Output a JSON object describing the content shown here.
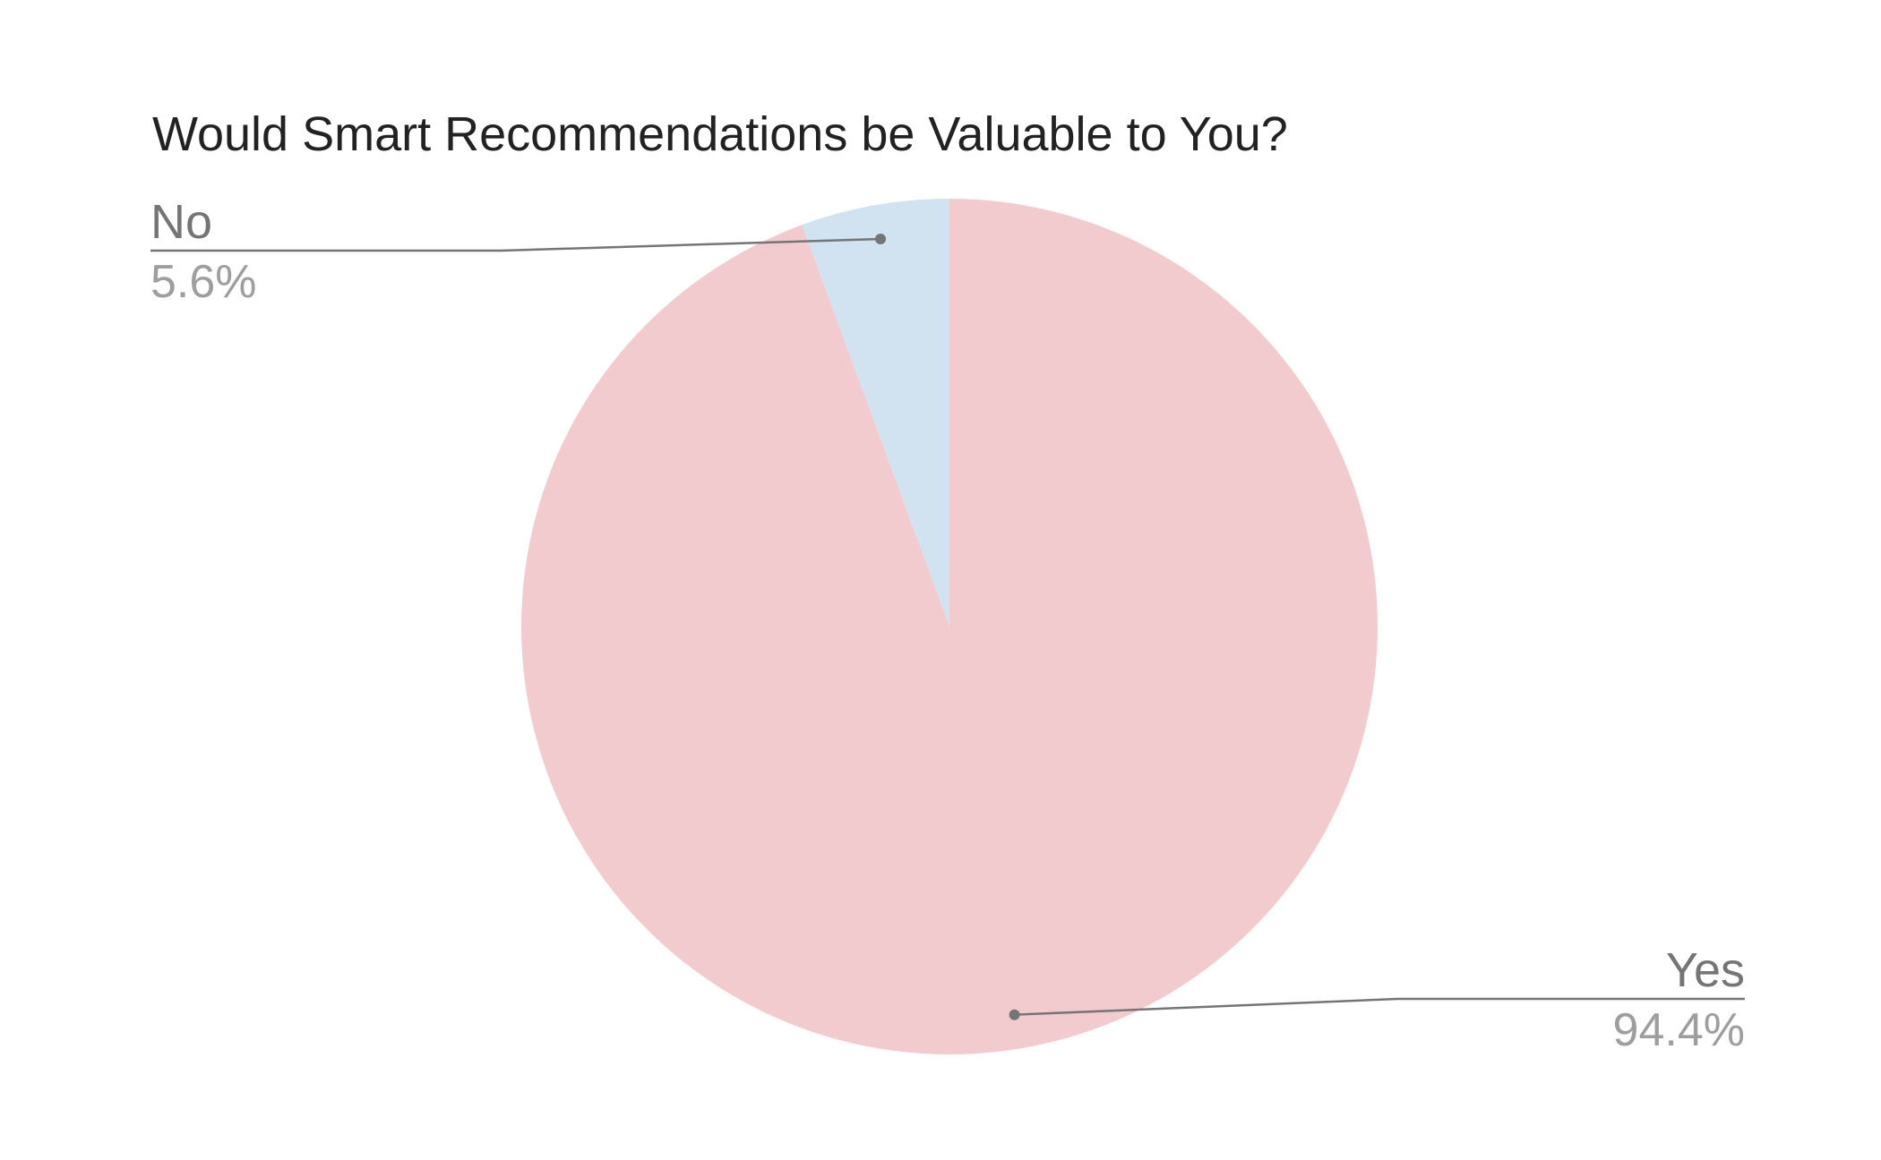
{
  "chart_data": {
    "type": "pie",
    "title": "Would Smart Recommendations be Valuable to You?",
    "slices": [
      {
        "label": "Yes",
        "value": 94.4,
        "percent_label": "94.4%",
        "color": "#f2cbcf"
      },
      {
        "label": "No",
        "value": 5.6,
        "percent_label": "5.6%",
        "color": "#d1e2f0"
      }
    ],
    "start_angle_deg": 0,
    "direction": "clockwise",
    "label_style": "callout-lines",
    "label_color": "#757575",
    "percent_color": "#9e9e9e",
    "leader_color": "#757575"
  }
}
